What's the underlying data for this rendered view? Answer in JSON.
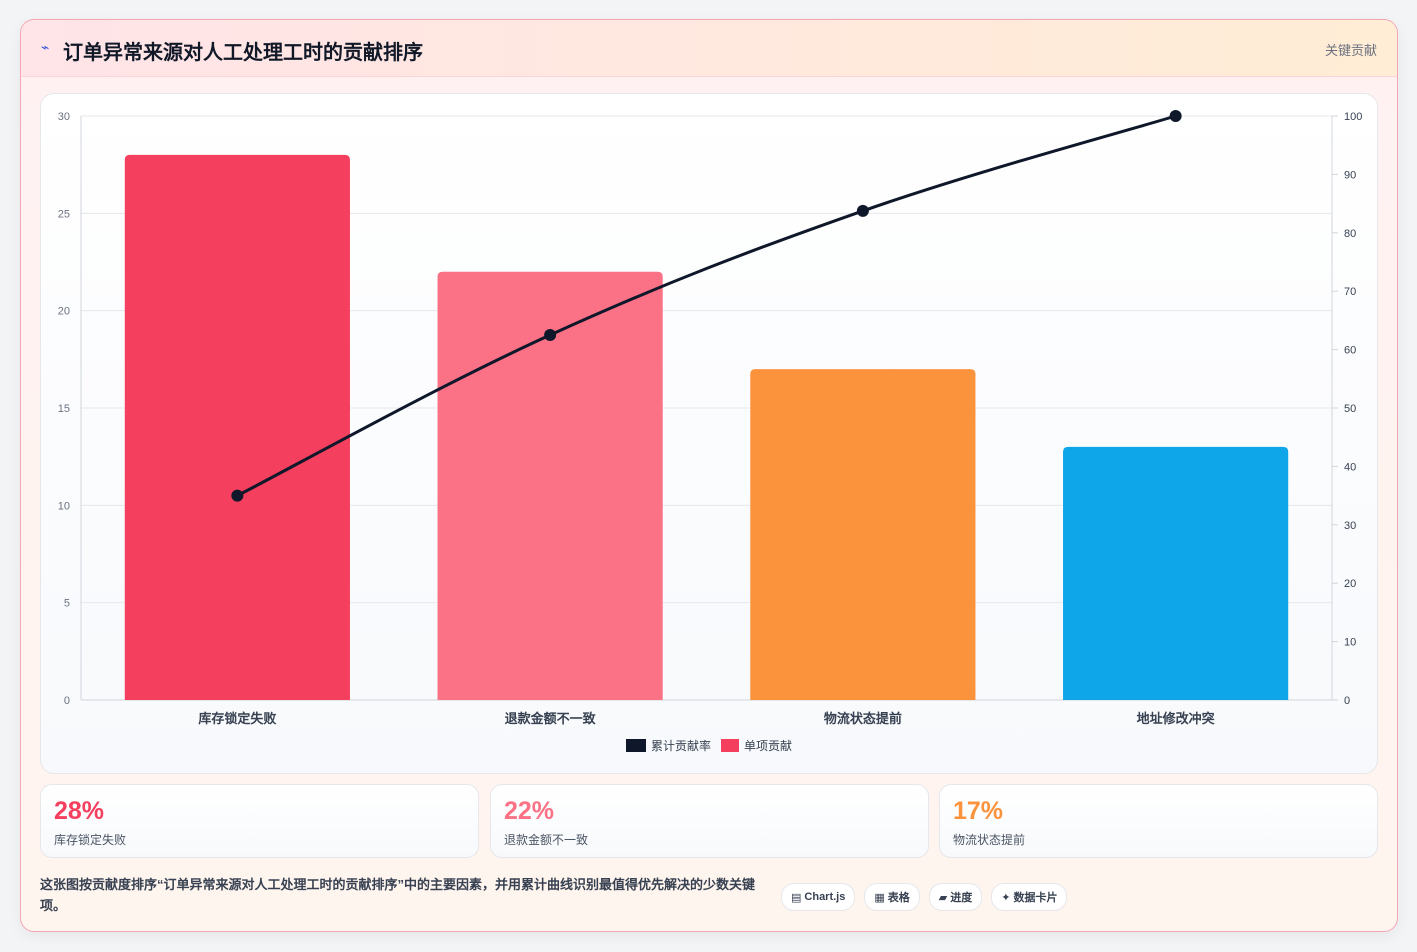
{
  "header": {
    "icon": "bolt-icon",
    "title": "订单异常来源对人工处理工时的贡献排序",
    "badge": "关键贡献"
  },
  "colors": {
    "bar1": "#f43f5e",
    "bar2": "#fb7185",
    "bar3": "#fb923c",
    "bar4": "#0ea5e9",
    "line": "#0f172a"
  },
  "chart_data": {
    "type": "bar",
    "categories": [
      "库存锁定失败",
      "退款金额不一致",
      "物流状态提前",
      "地址修改冲突"
    ],
    "series": [
      {
        "name": "单项贡献",
        "type": "bar",
        "axis": "left",
        "values": [
          28,
          22,
          17,
          13
        ]
      },
      {
        "name": "累计贡献率",
        "type": "line",
        "axis": "right",
        "values": [
          35,
          62.5,
          83.75,
          100
        ]
      }
    ],
    "ylim_left": [
      0,
      30
    ],
    "yticks_left": [
      0,
      5,
      10,
      15,
      20,
      25,
      30
    ],
    "ylim_right": [
      0,
      100
    ],
    "yticks_right": [
      0,
      10,
      20,
      30,
      40,
      50,
      60,
      70,
      80,
      90,
      100
    ],
    "grid": true,
    "legend_position": "bottom"
  },
  "stats": [
    {
      "value": "28%",
      "label": "库存锁定失败",
      "color": "#f43f5e"
    },
    {
      "value": "22%",
      "label": "退款金额不一致",
      "color": "#fb7185"
    },
    {
      "value": "17%",
      "label": "物流状态提前",
      "color": "#fb923c"
    }
  ],
  "description": "这张图按贡献度排序“订单异常来源对人工处理工时的贡献排序”中的主要因素，并用累计曲线识别最值得优先解决的少数关键项。",
  "tags": [
    {
      "icon": "▤",
      "label": "Chart.js"
    },
    {
      "icon": "▦",
      "label": "表格"
    },
    {
      "icon": "▰",
      "label": "进度"
    },
    {
      "icon": "✦",
      "label": "数据卡片"
    }
  ]
}
